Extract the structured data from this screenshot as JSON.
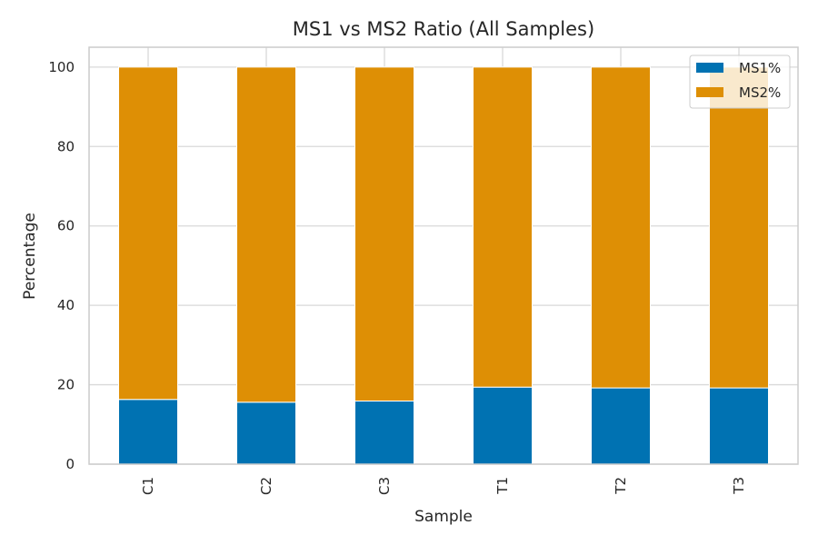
{
  "chart_data": {
    "type": "bar",
    "stacked": true,
    "title": "MS1 vs MS2 Ratio (All Samples)",
    "xlabel": "Sample",
    "ylabel": "Percentage",
    "categories": [
      "C1",
      "C2",
      "C3",
      "T1",
      "T2",
      "T3"
    ],
    "series": [
      {
        "name": "MS1%",
        "color": "#0072b2",
        "values": [
          16.3,
          15.6,
          15.9,
          19.4,
          19.2,
          19.2
        ]
      },
      {
        "name": "MS2%",
        "color": "#de8f05",
        "values": [
          83.7,
          84.4,
          84.1,
          80.6,
          80.8,
          80.8
        ]
      }
    ],
    "ylim": [
      0,
      105
    ],
    "yticks": [
      0,
      20,
      40,
      60,
      80,
      100
    ],
    "grid": true,
    "legend_position": "top-right"
  }
}
